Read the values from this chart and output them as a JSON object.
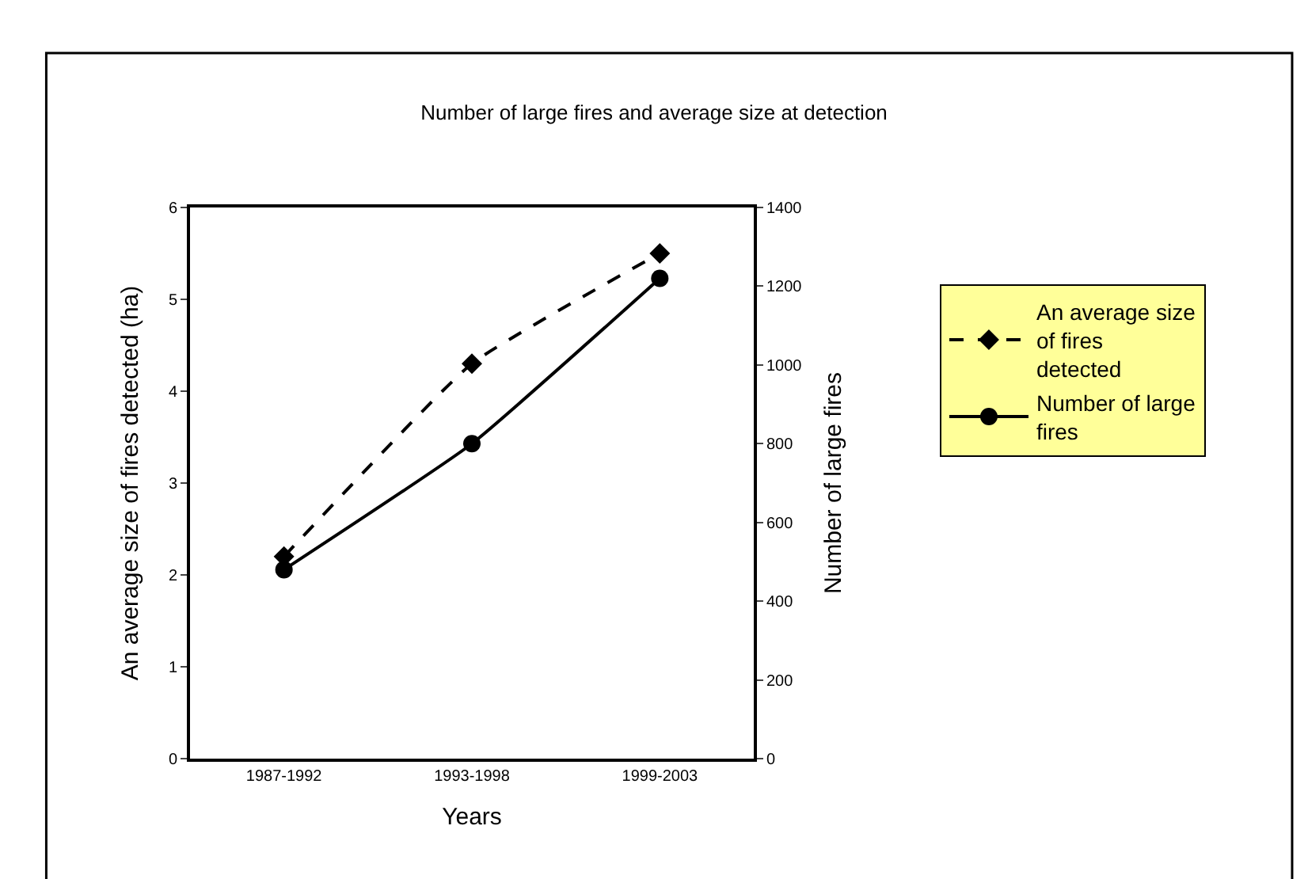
{
  "chart_data": {
    "type": "line",
    "title": "Number of large fires and average size at detection",
    "xlabel": "Years",
    "ylabel": "An average size of fires detected (ha)",
    "y2label": "Number of large fires",
    "categories": [
      "1987-1992",
      "1993-1998",
      "1999-2003"
    ],
    "series": [
      {
        "name": "An average size of fires detected",
        "color": "#000000",
        "values": [
          2.2,
          4.3,
          5.5
        ],
        "marker": "diamond",
        "line_style": "dashed"
      },
      {
        "name": "Number of large fires",
        "color": "#000000",
        "values": [
          480,
          800,
          1220
        ],
        "marker": "circle",
        "line_style": "solid",
        "axis": "y2"
      }
    ],
    "ylim": [
      0,
      6
    ],
    "yticks": [
      0,
      1,
      2,
      3,
      4,
      5,
      6
    ],
    "y2lim": [
      0,
      1400
    ],
    "y2ticks": [
      0,
      200,
      400,
      600,
      800,
      1000,
      1200,
      1400
    ],
    "legend": "right"
  }
}
